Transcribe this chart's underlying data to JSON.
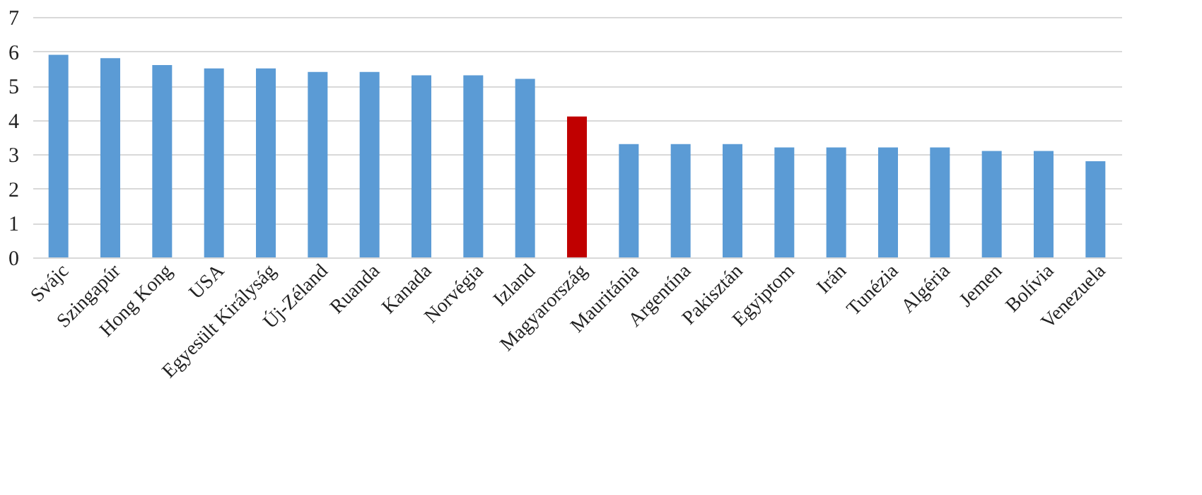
{
  "chart_data": {
    "type": "bar",
    "categories": [
      "Svájc",
      "Szingapúr",
      "Hong Kong",
      "USA",
      "Egyesült Királyság",
      "Új-Zéland",
      "Ruanda",
      "Kanada",
      "Norvégia",
      "Izland",
      "Magyarország",
      "Mauritánia",
      "Argentína",
      "Pakisztán",
      "Egyiptom",
      "Irán",
      "Tunézia",
      "Algéria",
      "Jemen",
      "Bolívia",
      "Venezuela"
    ],
    "values": [
      5.9,
      5.8,
      5.6,
      5.5,
      5.5,
      5.4,
      5.4,
      5.3,
      5.3,
      5.2,
      4.1,
      3.3,
      3.3,
      3.3,
      3.2,
      3.2,
      3.2,
      3.2,
      3.1,
      3.1,
      2.8
    ],
    "colors": [
      "#5b9bd5",
      "#5b9bd5",
      "#5b9bd5",
      "#5b9bd5",
      "#5b9bd5",
      "#5b9bd5",
      "#5b9bd5",
      "#5b9bd5",
      "#5b9bd5",
      "#5b9bd5",
      "#c00000",
      "#5b9bd5",
      "#5b9bd5",
      "#5b9bd5",
      "#5b9bd5",
      "#5b9bd5",
      "#5b9bd5",
      "#5b9bd5",
      "#5b9bd5",
      "#5b9bd5",
      "#5b9bd5"
    ],
    "ylim": [
      0,
      7
    ],
    "yticks": [
      0,
      1,
      2,
      3,
      4,
      5,
      6,
      7
    ],
    "grid": "y"
  }
}
